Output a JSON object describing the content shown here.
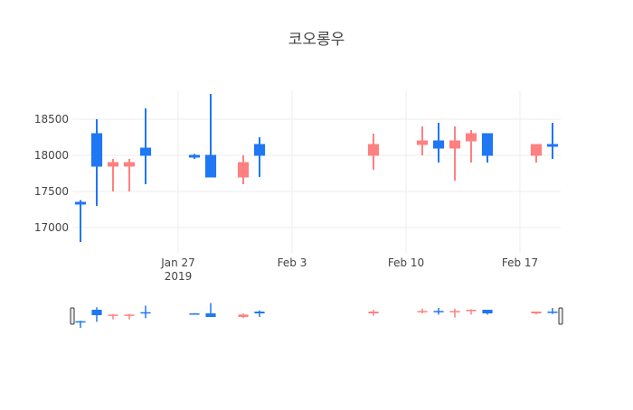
{
  "chart_data": {
    "type": "candlestick",
    "title": "코오롱우",
    "xlabel": "",
    "ylabel": "",
    "x_range": [
      "2019-01-21",
      "2019-02-19"
    ],
    "ylim": [
      16650,
      18900
    ],
    "y_ticks": [
      17000,
      17500,
      18000,
      18500
    ],
    "x_ticks": [
      {
        "date": "2019-01-27",
        "label": "Jan 27",
        "sublabel": "2019"
      },
      {
        "date": "2019-02-03",
        "label": "Feb 3",
        "sublabel": ""
      },
      {
        "date": "2019-02-10",
        "label": "Feb 10",
        "sublabel": ""
      },
      {
        "date": "2019-02-17",
        "label": "Feb 17",
        "sublabel": ""
      }
    ],
    "grid": true,
    "rangeslider": true,
    "colors": {
      "increasing": "#1f77f4",
      "decreasing": "#ff8080",
      "grid": "#eeeeee",
      "text": "#444444"
    },
    "candles": [
      {
        "date": "2019-01-21",
        "open": 17350,
        "high": 17380,
        "low": 16800,
        "close": 17350
      },
      {
        "date": "2019-01-22",
        "open": 17850,
        "high": 18500,
        "low": 17300,
        "close": 18300
      },
      {
        "date": "2019-01-23",
        "open": 17900,
        "high": 17950,
        "low": 17500,
        "close": 17850
      },
      {
        "date": "2019-01-24",
        "open": 17900,
        "high": 17950,
        "low": 17500,
        "close": 17850
      },
      {
        "date": "2019-01-25",
        "open": 18000,
        "high": 18650,
        "low": 17600,
        "close": 18100
      },
      {
        "date": "2019-01-28",
        "open": 17990,
        "high": 18020,
        "low": 17950,
        "close": 18000
      },
      {
        "date": "2019-01-29",
        "open": 17700,
        "high": 18850,
        "low": 17700,
        "close": 18000
      },
      {
        "date": "2019-01-31",
        "open": 17900,
        "high": 18000,
        "low": 17600,
        "close": 17700
      },
      {
        "date": "2019-02-01",
        "open": 18000,
        "high": 18250,
        "low": 17700,
        "close": 18150
      },
      {
        "date": "2019-02-08",
        "open": 18150,
        "high": 18300,
        "low": 17800,
        "close": 18000
      },
      {
        "date": "2019-02-11",
        "open": 18200,
        "high": 18400,
        "low": 18000,
        "close": 18150
      },
      {
        "date": "2019-02-12",
        "open": 18100,
        "high": 18450,
        "low": 17900,
        "close": 18200
      },
      {
        "date": "2019-02-13",
        "open": 18200,
        "high": 18400,
        "low": 17650,
        "close": 18100
      },
      {
        "date": "2019-02-14",
        "open": 18300,
        "high": 18350,
        "low": 17900,
        "close": 18200
      },
      {
        "date": "2019-02-15",
        "open": 18000,
        "high": 18300,
        "low": 17900,
        "close": 18300
      },
      {
        "date": "2019-02-18",
        "open": 18150,
        "high": 18150,
        "low": 17900,
        "close": 18000
      },
      {
        "date": "2019-02-19",
        "open": 18150,
        "high": 18450,
        "low": 17950,
        "close": 18150
      }
    ]
  }
}
